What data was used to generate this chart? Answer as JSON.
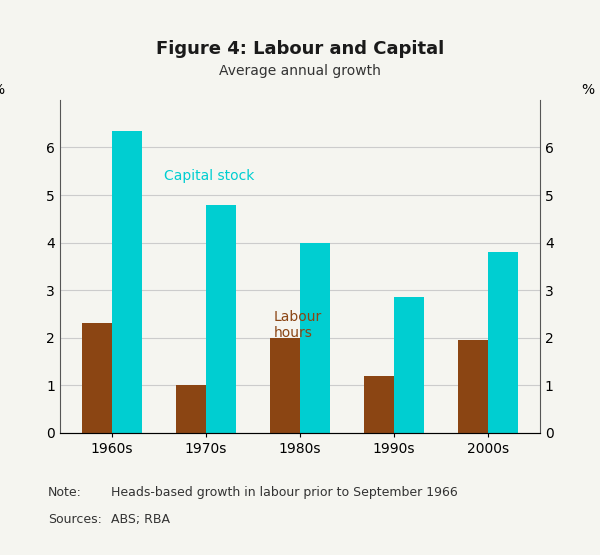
{
  "title": "Figure 4: Labour and Capital",
  "subtitle": "Average annual growth",
  "categories": [
    "1960s",
    "1970s",
    "1980s",
    "1990s",
    "2000s"
  ],
  "labour_hours": [
    2.3,
    1.0,
    2.0,
    1.2,
    1.95
  ],
  "capital_stock": [
    6.35,
    4.8,
    4.0,
    2.85,
    3.8
  ],
  "labour_color": "#8B4513",
  "capital_color": "#00CED1",
  "ylim": [
    0,
    7
  ],
  "yticks": [
    0,
    1,
    2,
    3,
    4,
    5,
    6
  ],
  "ylabel_left": "%",
  "ylabel_right": "%",
  "bar_width": 0.32,
  "capital_label": "Capital stock",
  "labour_label": "Labour\nhours",
  "note_label": "Note:",
  "note_text": "Heads-based growth in labour prior to September 1966",
  "sources_label": "Sources:",
  "sources_text": "ABS; RBA",
  "title_fontsize": 13,
  "subtitle_fontsize": 10,
  "tick_fontsize": 10,
  "annot_fontsize": 10,
  "note_fontsize": 9,
  "background_color": "#f5f5f0",
  "plot_bg_color": "#f5f5f0",
  "grid_color": "#cccccc"
}
